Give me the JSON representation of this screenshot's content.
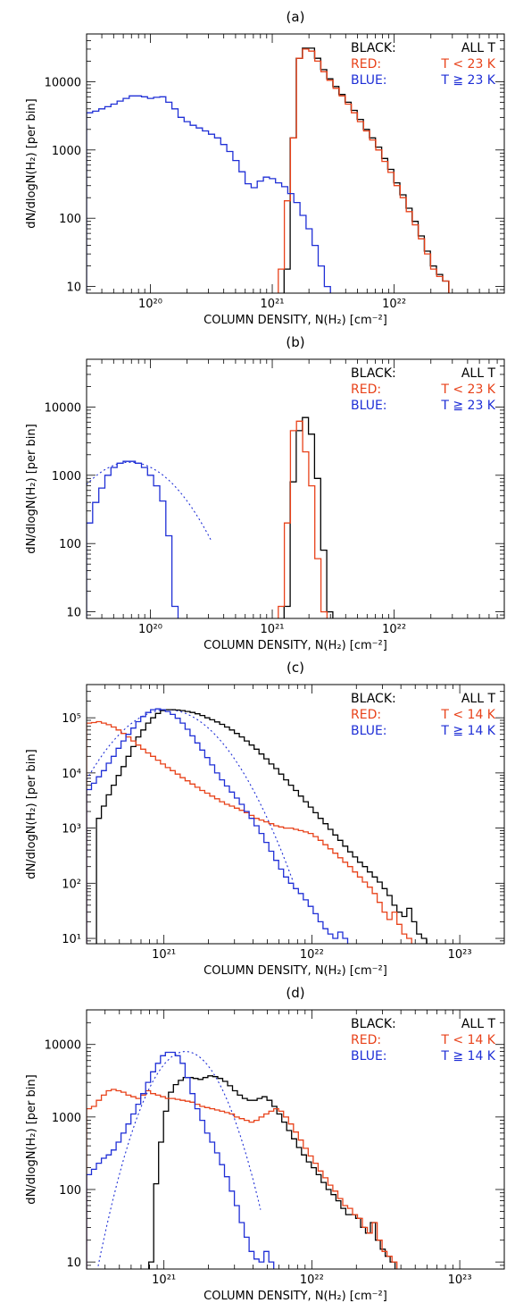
{
  "colors": {
    "black": "#000000",
    "red": "#e8421a",
    "blue": "#1f2fd6"
  },
  "chart_data": [
    {
      "type": "histogram",
      "panel_label": "(a)",
      "xlabel": "COLUMN DENSITY, N(H₂)  [cm⁻²]",
      "ylabel": "dN/dlogN(H₂)  [per bin]",
      "x_scale": "log",
      "y_scale": "log",
      "xlim": [
        3e+19,
        8e+22
      ],
      "ylim": [
        8,
        50000
      ],
      "x_ticks": [
        {
          "v": 1e+20,
          "label": "10²⁰"
        },
        {
          "v": 1e+21,
          "label": "10²¹"
        },
        {
          "v": 1e+22,
          "label": "10²²"
        }
      ],
      "y_ticks": [
        {
          "v": 10,
          "label": "10"
        },
        {
          "v": 100,
          "label": "100"
        },
        {
          "v": 1000,
          "label": "1000"
        },
        {
          "v": 10000,
          "label": "10000"
        }
      ],
      "legend": [
        {
          "key": "BLACK:",
          "value": "ALL T",
          "color": "black"
        },
        {
          "key": "RED:",
          "value": "T < 23 K",
          "color": "red"
        },
        {
          "key": "BLUE:",
          "value": "T ≧ 23 K",
          "color": "blue"
        }
      ],
      "series": [
        {
          "color": "black",
          "x_start": 1.25e+21,
          "bin_dex": 0.05,
          "values": [
            18,
            1500,
            22000,
            31000,
            31000,
            22000,
            15000,
            11000,
            8500,
            6500,
            5000,
            3800,
            2800,
            2000,
            1500,
            1100,
            750,
            520,
            330,
            220,
            140,
            90,
            55,
            33,
            20,
            15,
            12
          ]
        },
        {
          "color": "red",
          "x_start": 1.12e+21,
          "bin_dex": 0.05,
          "values": [
            18,
            180,
            1500,
            22000,
            30000,
            28000,
            20000,
            14000,
            10500,
            8000,
            6200,
            4700,
            3500,
            2600,
            1900,
            1400,
            1000,
            680,
            470,
            300,
            200,
            125,
            80,
            50,
            30,
            18,
            14,
            12
          ]
        },
        {
          "color": "blue",
          "x_start": 3e+19,
          "bin_dex": 0.05,
          "values": [
            3500,
            3700,
            4000,
            4300,
            4700,
            5200,
            5700,
            6200,
            6200,
            6000,
            5700,
            5900,
            6000,
            5000,
            4000,
            3000,
            2600,
            2300,
            2100,
            1900,
            1700,
            1500,
            1200,
            950,
            700,
            480,
            320,
            280,
            350,
            400,
            380,
            330,
            290,
            230,
            170,
            110,
            70,
            40,
            20,
            10
          ]
        }
      ]
    },
    {
      "type": "histogram",
      "panel_label": "(b)",
      "xlabel": "COLUMN DENSITY, N(H₂)  [cm⁻²]",
      "ylabel": "dN/dlogN(H₂)  [per bin]",
      "x_scale": "log",
      "y_scale": "log",
      "xlim": [
        3e+19,
        8e+22
      ],
      "ylim": [
        8,
        50000
      ],
      "x_ticks": [
        {
          "v": 1e+20,
          "label": "10²⁰"
        },
        {
          "v": 1e+21,
          "label": "10²¹"
        },
        {
          "v": 1e+22,
          "label": "10²²"
        }
      ],
      "y_ticks": [
        {
          "v": 10,
          "label": "10"
        },
        {
          "v": 100,
          "label": "100"
        },
        {
          "v": 1000,
          "label": "1000"
        },
        {
          "v": 10000,
          "label": "10000"
        }
      ],
      "legend": [
        {
          "key": "BLACK:",
          "value": "ALL T",
          "color": "black"
        },
        {
          "key": "RED:",
          "value": "T < 23 K",
          "color": "red"
        },
        {
          "key": "BLUE:",
          "value": "T ≧ 23 K",
          "color": "blue"
        }
      ],
      "series": [
        {
          "color": "black",
          "x_start": 1.25e+21,
          "bin_dex": 0.05,
          "values": [
            12,
            800,
            4500,
            7000,
            4000,
            900,
            80,
            10
          ]
        },
        {
          "color": "red",
          "x_start": 1.12e+21,
          "bin_dex": 0.05,
          "values": [
            12,
            200,
            4500,
            6200,
            2200,
            700,
            60,
            10
          ]
        },
        {
          "color": "blue",
          "x_start": 3e+19,
          "bin_dex": 0.05,
          "values": [
            200,
            400,
            650,
            1000,
            1300,
            1500,
            1600,
            1600,
            1500,
            1300,
            1000,
            700,
            420,
            130,
            12
          ]
        }
      ],
      "fit": {
        "color": "blue",
        "peak": 1550,
        "x_peak": 6.8e+19,
        "sigma_dex": 0.29,
        "xmin": 3e+19,
        "xmax": 3.2e+20
      }
    },
    {
      "type": "histogram",
      "panel_label": "(c)",
      "xlabel": "COLUMN DENSITY, N(H₂)  [cm⁻²]",
      "ylabel": "dN/dlogN(H₂)  [per bin]",
      "x_scale": "log",
      "y_scale": "log",
      "xlim": [
        3e+20,
        2e+23
      ],
      "ylim": [
        8,
        400000
      ],
      "x_ticks": [
        {
          "v": 1e+21,
          "label": "10²¹"
        },
        {
          "v": 1e+22,
          "label": "10²²"
        },
        {
          "v": 1e+23,
          "label": "10²³"
        }
      ],
      "y_ticks": [
        {
          "v": 10,
          "label": "10¹"
        },
        {
          "v": 100,
          "label": "10²"
        },
        {
          "v": 1000,
          "label": "10³"
        },
        {
          "v": 10000,
          "label": "10⁴"
        },
        {
          "v": 100000,
          "label": "10⁵"
        }
      ],
      "legend": [
        {
          "key": "BLACK:",
          "value": "ALL T",
          "color": "black"
        },
        {
          "key": "RED:",
          "value": "T < 14 K",
          "color": "red"
        },
        {
          "key": "BLUE:",
          "value": "T ≧ 14 K",
          "color": "blue"
        }
      ],
      "series": [
        {
          "color": "black",
          "x_start": 3.5e+20,
          "bin_dex": 0.0333,
          "values": [
            1500,
            2500,
            4000,
            6000,
            9000,
            13000,
            20000,
            30000,
            45000,
            60000,
            80000,
            100000,
            120000,
            135000,
            140000,
            140000,
            138000,
            135000,
            130000,
            125000,
            118000,
            110000,
            100000,
            92000,
            84000,
            76000,
            68000,
            60000,
            52000,
            45000,
            38000,
            32000,
            27000,
            22000,
            18000,
            14500,
            12000,
            9500,
            7500,
            6000,
            4800,
            3800,
            3000,
            2400,
            1900,
            1500,
            1200,
            950,
            750,
            600,
            470,
            370,
            300,
            240,
            200,
            160,
            130,
            105,
            80,
            60,
            40,
            30,
            25,
            35,
            20,
            12,
            10
          ]
        },
        {
          "color": "red",
          "x_start": 3e+20,
          "bin_dex": 0.0333,
          "values": [
            80000,
            82000,
            85000,
            80000,
            75000,
            68000,
            60000,
            52000,
            45000,
            38000,
            32000,
            27000,
            23000,
            20000,
            17000,
            14500,
            12500,
            11000,
            9500,
            8200,
            7200,
            6300,
            5500,
            4800,
            4300,
            3800,
            3400,
            3000,
            2700,
            2500,
            2300,
            2100,
            1900,
            1700,
            1500,
            1400,
            1300,
            1200,
            1100,
            1050,
            1000,
            1000,
            950,
            900,
            850,
            800,
            700,
            600,
            500,
            420,
            350,
            290,
            240,
            200,
            160,
            130,
            105,
            85,
            65,
            45,
            30,
            22,
            30,
            18,
            12,
            10
          ]
        },
        {
          "color": "blue",
          "x_start": 3e+20,
          "bin_dex": 0.0333,
          "values": [
            5000,
            6500,
            8500,
            11000,
            15000,
            20000,
            28000,
            38000,
            50000,
            65000,
            85000,
            105000,
            125000,
            140000,
            145000,
            140000,
            130000,
            115000,
            98000,
            80000,
            62000,
            47000,
            35000,
            26000,
            19000,
            14000,
            10000,
            7500,
            5800,
            4500,
            3500,
            2700,
            2000,
            1500,
            1100,
            800,
            550,
            380,
            260,
            180,
            130,
            100,
            80,
            65,
            50,
            38,
            28,
            20,
            15,
            12,
            10,
            13,
            10
          ]
        }
      ],
      "fit": {
        "color": "blue",
        "peak": 140000,
        "x_peak": 1.05e+21,
        "sigma_dex": 0.225,
        "xmin": 3e+20,
        "xmax": 7.5e+21
      }
    },
    {
      "type": "histogram",
      "panel_label": "(d)",
      "xlabel": "COLUMN DENSITY, N(H₂)  [cm⁻²]",
      "ylabel": "dN/dlogN(H₂)  [per bin]",
      "x_scale": "log",
      "y_scale": "log",
      "xlim": [
        3e+20,
        2e+23
      ],
      "ylim": [
        8,
        30000
      ],
      "x_ticks": [
        {
          "v": 1e+21,
          "label": "10²¹"
        },
        {
          "v": 1e+22,
          "label": "10²²"
        },
        {
          "v": 1e+23,
          "label": "10²³"
        }
      ],
      "y_ticks": [
        {
          "v": 10,
          "label": "10"
        },
        {
          "v": 100,
          "label": "100"
        },
        {
          "v": 1000,
          "label": "1000"
        },
        {
          "v": 10000,
          "label": "10000"
        }
      ],
      "legend": [
        {
          "key": "BLACK:",
          "value": "ALL T",
          "color": "black"
        },
        {
          "key": "RED:",
          "value": "T < 14 K",
          "color": "red"
        },
        {
          "key": "BLUE:",
          "value": "T ≧ 14 K",
          "color": "blue"
        }
      ],
      "series": [
        {
          "color": "black",
          "x_start": 7.9e+20,
          "bin_dex": 0.0333,
          "values": [
            10,
            120,
            450,
            1200,
            2200,
            2800,
            3200,
            3500,
            3500,
            3400,
            3300,
            3500,
            3700,
            3600,
            3400,
            3100,
            2700,
            2300,
            2000,
            1800,
            1700,
            1700,
            1800,
            1900,
            1700,
            1400,
            1100,
            850,
            650,
            500,
            380,
            300,
            240,
            200,
            160,
            125,
            100,
            85,
            70,
            55,
            45,
            45,
            40,
            30,
            25,
            35,
            20,
            15,
            12,
            10
          ]
        },
        {
          "color": "red",
          "x_start": 3e+20,
          "bin_dex": 0.0333,
          "values": [
            1300,
            1400,
            1700,
            2000,
            2300,
            2400,
            2300,
            2200,
            2000,
            1900,
            1800,
            2000,
            2300,
            2100,
            2000,
            1900,
            1800,
            1800,
            1750,
            1700,
            1650,
            1600,
            1500,
            1400,
            1350,
            1300,
            1250,
            1200,
            1150,
            1100,
            1000,
            950,
            900,
            850,
            900,
            1000,
            1100,
            1200,
            1300,
            1200,
            1000,
            800,
            620,
            480,
            370,
            290,
            230,
            180,
            145,
            115,
            95,
            75,
            60,
            55,
            45,
            40,
            30,
            25,
            35,
            20,
            14,
            12,
            10
          ]
        },
        {
          "color": "blue",
          "x_start": 3e+20,
          "bin_dex": 0.0333,
          "values": [
            160,
            190,
            230,
            270,
            300,
            350,
            450,
            600,
            800,
            1100,
            1500,
            2100,
            3000,
            4200,
            5500,
            7000,
            7800,
            7800,
            7000,
            5500,
            3500,
            2100,
            1300,
            900,
            600,
            450,
            320,
            220,
            150,
            95,
            60,
            35,
            22,
            14,
            11,
            10,
            14,
            10
          ]
        }
      ],
      "fit": {
        "color": "blue",
        "peak": 8000,
        "x_peak": 1.4e+21,
        "sigma_dex": 0.16,
        "xmin": 3e+20,
        "xmax": 4.5e+21
      }
    }
  ]
}
